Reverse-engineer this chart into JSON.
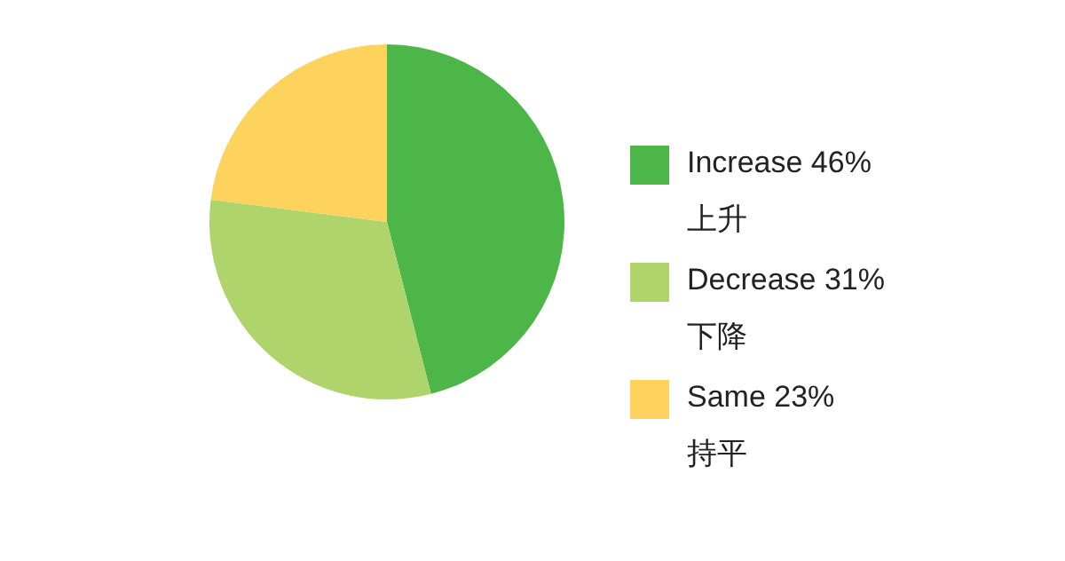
{
  "chart_data": {
    "type": "pie",
    "categories": [
      "Increase 46%\n上升",
      "Decrease 31%\n下降",
      "Same 23%\n持平"
    ],
    "values": [
      46,
      31,
      23
    ],
    "colors": [
      "#4cb748",
      "#afd46b",
      "#fdd35e"
    ],
    "legend": "right"
  }
}
